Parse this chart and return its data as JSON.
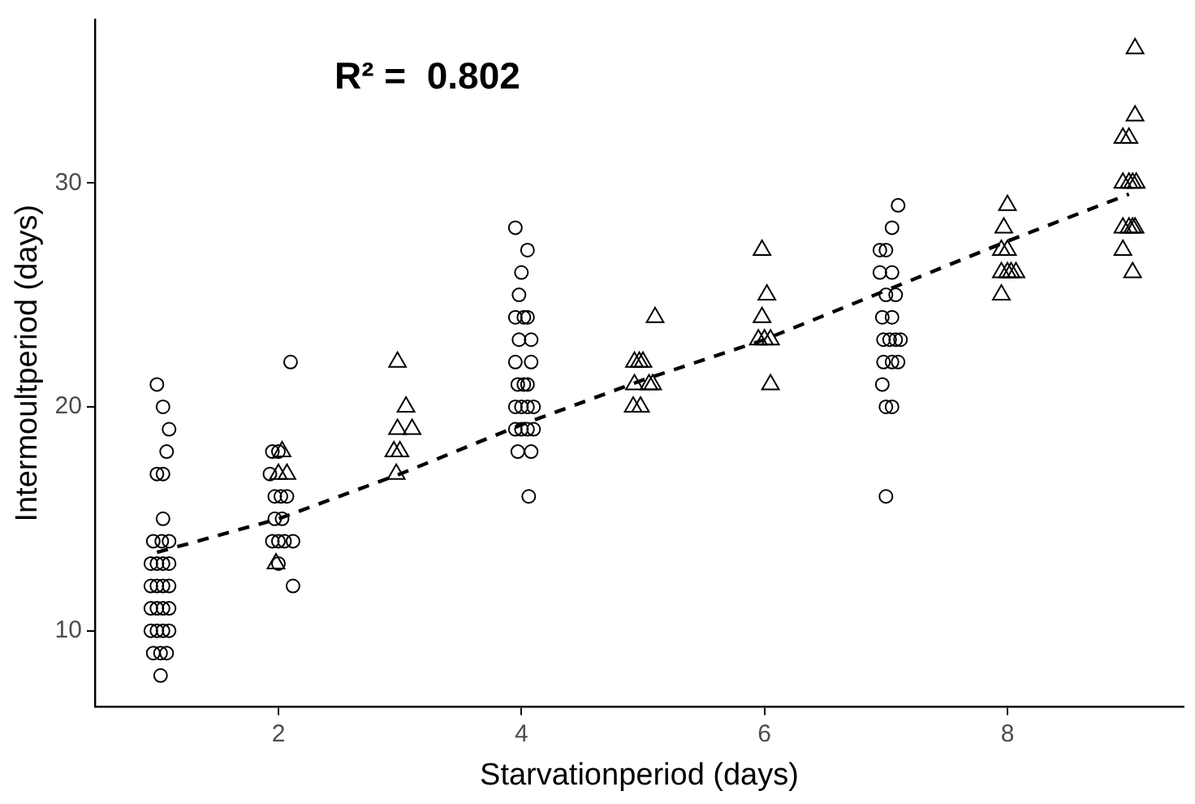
{
  "chart_data": {
    "type": "scatter",
    "xlabel": "Starvationperiod (days)",
    "ylabel": "Intermoultperiod (days)",
    "annotations": [
      "R² =  0.802"
    ],
    "xlim": [
      0.49,
      9.45
    ],
    "ylim": [
      6.6,
      37.3
    ],
    "xticks": [
      2,
      4,
      6,
      8
    ],
    "yticks": [
      10,
      20,
      30
    ],
    "grid": false,
    "legend": false,
    "series": [
      {
        "marker": "circle",
        "color": "#000000",
        "x": [
          1.0,
          1.05,
          1.1,
          1.08,
          1.0,
          1.05,
          1.05,
          0.97,
          1.04,
          1.1,
          0.95,
          1.0,
          1.05,
          1.1,
          0.95,
          1.0,
          1.05,
          1.1,
          0.95,
          1.0,
          1.05,
          1.1,
          0.95,
          1.0,
          1.05,
          1.1,
          0.97,
          1.03,
          1.08,
          1.03,
          2.1,
          1.95,
          2.0,
          1.93,
          1.97,
          2.02,
          2.07,
          1.97,
          2.03,
          1.95,
          2.0,
          2.05,
          2.12,
          2.0,
          2.12,
          3.95,
          4.05,
          4.0,
          3.98,
          3.95,
          4.02,
          4.05,
          3.98,
          4.08,
          3.95,
          4.08,
          3.97,
          4.02,
          4.05,
          3.95,
          4.0,
          4.05,
          4.1,
          3.95,
          4.0,
          4.05,
          4.1,
          3.97,
          4.08,
          4.06,
          7.1,
          7.05,
          6.95,
          7.0,
          6.95,
          7.05,
          7.0,
          7.08,
          6.97,
          7.05,
          6.98,
          7.03,
          7.08,
          7.12,
          6.98,
          7.05,
          7.1,
          6.97,
          7.0,
          7.05,
          7.0
        ],
        "values": [
          21,
          20,
          19,
          18,
          17,
          17,
          15,
          14,
          14,
          14,
          13,
          13,
          13,
          13,
          12,
          12,
          12,
          12,
          11,
          11,
          11,
          11,
          10,
          10,
          10,
          10,
          9,
          9,
          9,
          8,
          22,
          18,
          18,
          17,
          16,
          16,
          16,
          15,
          15,
          14,
          14,
          14,
          14,
          13,
          12,
          28,
          27,
          26,
          25,
          24,
          24,
          24,
          23,
          23,
          22,
          22,
          21,
          21,
          21,
          20,
          20,
          20,
          20,
          19,
          19,
          19,
          19,
          18,
          18,
          16,
          29,
          28,
          27,
          27,
          26,
          26,
          25,
          25,
          24,
          24,
          23,
          23,
          23,
          23,
          22,
          22,
          22,
          21,
          20,
          20,
          16
        ]
      },
      {
        "marker": "triangle",
        "color": "#000000",
        "x": [
          2.03,
          2.0,
          2.07,
          1.98,
          2.98,
          3.05,
          2.98,
          3.1,
          2.95,
          3.0,
          2.97,
          5.1,
          4.93,
          4.97,
          5.0,
          4.93,
          5.05,
          5.08,
          4.92,
          4.98,
          5.98,
          6.02,
          5.98,
          5.95,
          6.0,
          6.05,
          6.05,
          8.0,
          7.97,
          8.0,
          7.95,
          7.95,
          8.0,
          8.03,
          8.07,
          7.95,
          9.05,
          9.05,
          8.95,
          9.0,
          8.95,
          9.0,
          9.03,
          9.06,
          8.95,
          9.0,
          9.03,
          9.05,
          8.95,
          9.03
        ],
        "values": [
          18,
          17,
          17,
          13,
          22,
          20,
          19,
          19,
          18,
          18,
          17,
          24,
          22,
          22,
          22,
          21,
          21,
          21,
          20,
          20,
          27,
          25,
          24,
          23,
          23,
          23,
          21,
          29,
          28,
          27,
          27,
          26,
          26,
          26,
          26,
          25,
          36,
          33,
          32,
          32,
          30,
          30,
          30,
          30,
          28,
          28,
          28,
          28,
          27,
          26
        ]
      },
      {
        "type": "line",
        "marker": "none",
        "line_style": "dashed",
        "color": "#000000",
        "x": [
          1,
          2,
          3,
          4,
          5,
          6,
          7,
          8,
          9
        ],
        "values": [
          13.5,
          15,
          17,
          19.2,
          21.2,
          23,
          25.2,
          27.4,
          29.5
        ]
      }
    ]
  }
}
